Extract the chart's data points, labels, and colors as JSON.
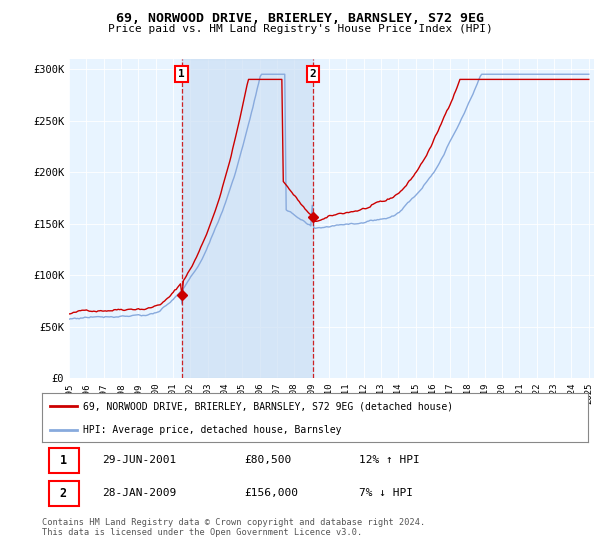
{
  "title": "69, NORWOOD DRIVE, BRIERLEY, BARNSLEY, S72 9EG",
  "subtitle": "Price paid vs. HM Land Registry's House Price Index (HPI)",
  "ylim": [
    0,
    310000
  ],
  "yticks": [
    0,
    50000,
    100000,
    150000,
    200000,
    250000,
    300000
  ],
  "ytick_labels": [
    "£0",
    "£50K",
    "£100K",
    "£150K",
    "£200K",
    "£250K",
    "£300K"
  ],
  "hpi_color": "#88aadd",
  "sale_color": "#cc0000",
  "shade_color": "#cce0f5",
  "bg_color": "#e8f4ff",
  "grid_color": "#cccccc",
  "marker1_date": "29-JUN-2001",
  "marker1_price": 80500,
  "marker1_hpi": "12% ↑ HPI",
  "marker2_date": "28-JAN-2009",
  "marker2_price": 156000,
  "marker2_hpi": "7% ↓ HPI",
  "legend_label_sale": "69, NORWOOD DRIVE, BRIERLEY, BARNSLEY, S72 9EG (detached house)",
  "legend_label_hpi": "HPI: Average price, detached house, Barnsley",
  "footer": "Contains HM Land Registry data © Crown copyright and database right 2024.\nThis data is licensed under the Open Government Licence v3.0.",
  "sale1_year": 2001.5,
  "sale2_year": 2009.08,
  "sale1_price": 80500,
  "sale2_price": 156000
}
